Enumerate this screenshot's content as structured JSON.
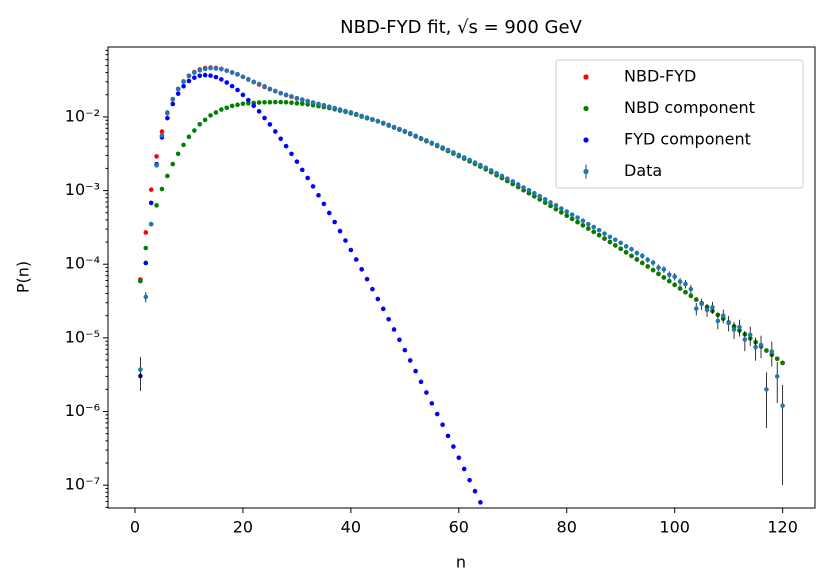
{
  "chart_data": {
    "type": "scatter",
    "title": "NBD-FYD fit, √s = 900 GeV",
    "xlabel": "n",
    "ylabel": "P(n)",
    "log_y": true,
    "legend": "upper right",
    "xlim": [
      -5,
      126
    ],
    "ylim": [
      4.9e-08,
      0.089
    ],
    "xticks": [
      0,
      20,
      40,
      60,
      80,
      100,
      120
    ],
    "yticks": [
      {
        "value": 1e-07,
        "label": "10⁻⁷"
      },
      {
        "value": 1e-06,
        "label": "10⁻⁶"
      },
      {
        "value": 1e-05,
        "label": "10⁻⁵"
      },
      {
        "value": 0.0001,
        "label": "10⁻⁴"
      },
      {
        "value": 0.001,
        "label": "10⁻³"
      },
      {
        "value": 0.01,
        "label": "10⁻²"
      }
    ],
    "x": [
      1,
      2,
      3,
      4,
      5,
      6,
      7,
      8,
      9,
      10,
      11,
      12,
      13,
      14,
      15,
      16,
      17,
      18,
      19,
      20,
      21,
      22,
      23,
      24,
      25,
      26,
      27,
      28,
      29,
      30,
      31,
      32,
      33,
      34,
      35,
      36,
      37,
      38,
      39,
      40,
      41,
      42,
      43,
      44,
      45,
      46,
      47,
      48,
      49,
      50,
      51,
      52,
      53,
      54,
      55,
      56,
      57,
      58,
      59,
      60,
      61,
      62,
      63,
      64,
      65,
      66,
      67,
      68,
      69,
      70,
      71,
      72,
      73,
      74,
      75,
      76,
      77,
      78,
      79,
      80,
      81,
      82,
      83,
      84,
      85,
      86,
      87,
      88,
      89,
      90,
      91,
      92,
      93,
      94,
      95,
      96,
      97,
      98,
      99,
      100,
      101,
      102,
      103,
      104,
      105,
      106,
      107,
      108,
      109,
      110,
      111,
      112,
      113,
      114,
      115,
      116,
      117,
      118,
      119,
      120
    ],
    "series": [
      {
        "name": "NBD-FYD",
        "color": "red",
        "values": [
          6.2e-05,
          0.00027,
          0.00103,
          0.00291,
          0.00632,
          0.0112,
          0.0173,
          0.0239,
          0.0303,
          0.0362,
          0.0406,
          0.0441,
          0.0461,
          0.0468,
          0.0462,
          0.0449,
          0.0426,
          0.0403,
          0.0378,
          0.035,
          0.0322,
          0.0297,
          0.0276,
          0.0255,
          0.0238,
          0.0223,
          0.021,
          0.0198,
          0.0188,
          0.0178,
          0.017,
          0.0163,
          0.0155,
          0.0149,
          0.0143,
          0.0137,
          0.0131,
          0.0125,
          0.0119,
          0.0114,
          0.0108,
          0.0102,
          0.00966,
          0.00921,
          0.00874,
          0.00817,
          0.00766,
          0.00718,
          0.00673,
          0.00631,
          0.00586,
          0.00544,
          0.00506,
          0.0047,
          0.00437,
          0.00404,
          0.00373,
          0.00345,
          0.00319,
          0.00295,
          0.00272,
          0.0025,
          0.0023,
          0.00212,
          0.00195,
          0.00178,
          0.00162,
          0.00148,
          0.00135,
          0.00123,
          0.00112,
          0.00101,
          0.00092,
          0.000836,
          0.000759,
          0.000686,
          0.000619,
          0.00056,
          0.000506,
          0.000457,
          0.000413,
          0.000373,
          0.000337,
          0.000305,
          0.000275,
          0.000248,
          0.000223,
          0.0002,
          0.00018,
          0.000162,
          0.000145,
          0.00013,
          0.000116,
          0.000104,
          9.33e-05,
          8.32e-05,
          7.41e-05,
          6.61e-05,
          5.89e-05,
          5.25e-05,
          4.68e-05,
          4.17e-05,
          3.72e-05,
          3.31e-05,
          2.95e-05,
          2.62e-05,
          2.32e-05,
          2.06e-05,
          1.83e-05,
          1.62e-05,
          1.43e-05,
          1.26e-05,
          1.12e-05,
          9.86e-06,
          8.71e-06,
          7.66e-06,
          6.73e-06,
          5.92e-06,
          5.2e-06,
          4.57e-06
        ]
      },
      {
        "name": "NBD component",
        "color": "green",
        "values": [
          5.9e-05,
          0.000166,
          0.00035,
          0.00063,
          0.00105,
          0.00158,
          0.00229,
          0.00316,
          0.00417,
          0.00537,
          0.00653,
          0.00794,
          0.00912,
          0.0105,
          0.0115,
          0.0126,
          0.0133,
          0.0141,
          0.0146,
          0.0151,
          0.0153,
          0.0155,
          0.0157,
          0.0158,
          0.01585,
          0.0159,
          0.0159,
          0.0158,
          0.0156,
          0.0153,
          0.0151,
          0.0148,
          0.0144,
          0.014,
          0.0136,
          0.0132,
          0.0127,
          0.0122,
          0.0117,
          0.0112,
          0.0107,
          0.0101,
          0.0096,
          0.00916,
          0.00871,
          0.00817,
          0.00766,
          0.00718,
          0.00673,
          0.00631,
          0.00586,
          0.00544,
          0.00506,
          0.0047,
          0.00437,
          0.00404,
          0.00373,
          0.00345,
          0.00319,
          0.00295,
          0.00272,
          0.0025,
          0.0023,
          0.00212,
          0.00195,
          0.00178,
          0.00162,
          0.00148,
          0.00135,
          0.00123,
          0.00112,
          0.00101,
          0.00092,
          0.000836,
          0.000759,
          0.000686,
          0.000619,
          0.00056,
          0.000506,
          0.000457,
          0.000413,
          0.000373,
          0.000337,
          0.000305,
          0.000275,
          0.000248,
          0.000223,
          0.0002,
          0.00018,
          0.000162,
          0.000145,
          0.00013,
          0.000116,
          0.000104,
          9.33e-05,
          8.32e-05,
          7.41e-05,
          6.61e-05,
          5.89e-05,
          5.25e-05,
          4.68e-05,
          4.17e-05,
          3.72e-05,
          3.31e-05,
          2.95e-05,
          2.62e-05,
          2.32e-05,
          2.06e-05,
          1.83e-05,
          1.62e-05,
          1.43e-05,
          1.26e-05,
          1.12e-05,
          9.86e-06,
          8.71e-06,
          7.66e-06,
          6.73e-06,
          5.92e-06,
          5.2e-06,
          4.57e-06
        ]
      },
      {
        "name": "FYD component",
        "color": "blue",
        "values": [
          3.04e-06,
          0.000104,
          0.00068,
          0.00228,
          0.00527,
          0.00962,
          0.015,
          0.0207,
          0.0261,
          0.0308,
          0.0341,
          0.0362,
          0.037,
          0.0363,
          0.0347,
          0.0323,
          0.0293,
          0.0262,
          0.0232,
          0.0199,
          0.0169,
          0.0142,
          0.0119,
          0.00966,
          0.00791,
          0.00635,
          0.00505,
          0.00401,
          0.00315,
          0.00247,
          0.00191,
          0.00148,
          0.00114,
          0.000863,
          0.000659,
          0.000497,
          0.000374,
          0.000282,
          0.00021,
          0.000156,
          0.000116,
          8.53e-05,
          6.27e-05,
          4.59e-05,
          3.37e-05,
          2.48e-05,
          1.79e-05,
          1.3e-05,
          9.42e-06,
          6.82e-06,
          4.94e-06,
          3.54e-06,
          2.53e-06,
          1.81e-06,
          1.29e-06,
          9.25e-07,
          6.62e-07,
          4.67e-07,
          3.34e-07,
          2.36e-07,
          1.66e-07,
          1.17e-07,
          8.28e-08,
          5.85e-08,
          null,
          null,
          null,
          null,
          null,
          null,
          null,
          null,
          null,
          null,
          null,
          null,
          null,
          null,
          null,
          null,
          null,
          null,
          null,
          null,
          null,
          null,
          null,
          null,
          null,
          null,
          null,
          null,
          null,
          null,
          null,
          null,
          null,
          null,
          null,
          null,
          null,
          null,
          null,
          null,
          null,
          null,
          null,
          null,
          null,
          null,
          null,
          null,
          null,
          null,
          null,
          null,
          null,
          null,
          null,
          null
        ]
      },
      {
        "name": "Data",
        "color": "#1f77b4",
        "values": [
          3.7e-06,
          3.6e-05,
          0.00035,
          0.0022,
          0.0056,
          0.0115,
          0.0175,
          0.024,
          0.03,
          0.036,
          0.04,
          0.043,
          0.045,
          0.046,
          0.0455,
          0.0445,
          0.0425,
          0.04,
          0.038,
          0.035,
          0.0325,
          0.03,
          0.028,
          0.026,
          0.024,
          0.0225,
          0.021,
          0.02,
          0.019,
          0.018,
          0.0172,
          0.0164,
          0.0157,
          0.015,
          0.0144,
          0.0138,
          0.0132,
          0.0126,
          0.012,
          0.0115,
          0.0109,
          0.0103,
          0.0098,
          0.0093,
          0.0088,
          0.0083,
          0.0078,
          0.0073,
          0.00685,
          0.0064,
          0.006,
          0.00555,
          0.00515,
          0.0048,
          0.00445,
          0.00415,
          0.00385,
          0.00355,
          0.0033,
          0.00305,
          0.00282,
          0.0026,
          0.0024,
          0.00222,
          0.00205,
          0.00188,
          0.00172,
          0.00158,
          0.00145,
          0.00133,
          0.00121,
          0.0011,
          0.00101,
          0.00092,
          0.00084,
          0.00076,
          0.00069,
          0.00063,
          0.00057,
          0.00052,
          0.00047,
          0.00043,
          0.00039,
          0.00035,
          0.00032,
          0.00029,
          0.00026,
          0.000235,
          0.000215,
          0.000195,
          0.000175,
          0.00016,
          0.000142,
          0.00013,
          0.000115,
          0.000105,
          9e-05,
          8.5e-05,
          7.2e-05,
          6.8e-05,
          5.8e-05,
          5.4e-05,
          4.6e-05,
          2.5e-05,
          2.9e-05,
          2.4e-05,
          2.6e-05,
          1.7e-05,
          2e-05,
          1.6e-05,
          1.3e-05,
          1.4e-05,
          9.5e-06,
          1.1e-05,
          7.5e-06,
          8e-06,
          2e-06,
          6.5e-06,
          3e-06,
          1.2e-06
        ],
        "errors": [
          1.8e-06,
          5.7e-06,
          1.8e-05,
          4.5e-05,
          7.1e-05,
          0.0001,
          0.00013,
          0.00015,
          0.00016,
          0.00018,
          0.00019,
          0.0002,
          0.0002,
          0.0002,
          0.0002,
          0.0002,
          0.0002,
          0.00019,
          0.00019,
          0.00018,
          0.00017,
          0.00016,
          0.00016,
          0.00015,
          0.00015,
          0.00014,
          0.00014,
          0.00013,
          0.00013,
          0.00013,
          0.00012,
          0.00012,
          0.00012,
          0.00012,
          0.00011,
          0.00011,
          0.00011,
          0.00011,
          0.0001,
          0.0001,
          9.9e-05,
          9.6e-05,
          9.4e-05,
          9.2e-05,
          8.9e-05,
          8.7e-05,
          8.4e-05,
          8.1e-05,
          7.9e-05,
          7.6e-05,
          7.4e-05,
          7.1e-05,
          6.8e-05,
          6.6e-05,
          6.3e-05,
          6.1e-05,
          5.9e-05,
          5.7e-05,
          5.5e-05,
          5.2e-05,
          5e-05,
          4.8e-05,
          4.7e-05,
          4.5e-05,
          4.3e-05,
          4.1e-05,
          3.9e-05,
          3.8e-05,
          3.6e-05,
          3.5e-05,
          3.3e-05,
          3.2e-05,
          3e-05,
          2.9e-05,
          2.8e-05,
          2.6e-05,
          2.5e-05,
          2.4e-05,
          2.3e-05,
          2.2e-05,
          2.1e-05,
          2e-05,
          1.9e-05,
          1.8e-05,
          1.7e-05,
          1.6e-05,
          1.5e-05,
          1.5e-05,
          1.4e-05,
          1.3e-05,
          1.3e-05,
          1.2e-05,
          1.1e-05,
          1.1e-05,
          1e-05,
          9.7e-06,
          9e-06,
          8.8e-06,
          8.1e-06,
          7.8e-06,
          7.2e-06,
          7e-06,
          6.4e-06,
          4.8e-06,
          5.1e-06,
          4.7e-06,
          4.8e-06,
          3.9e-06,
          4.2e-06,
          3.8e-06,
          3.4e-06,
          3.6e-06,
          2.9e-06,
          3.2e-06,
          2.6e-06,
          2.7e-06,
          1.4e-06,
          2.4e-06,
          1.7e-06,
          1.1e-06
        ]
      }
    ]
  }
}
